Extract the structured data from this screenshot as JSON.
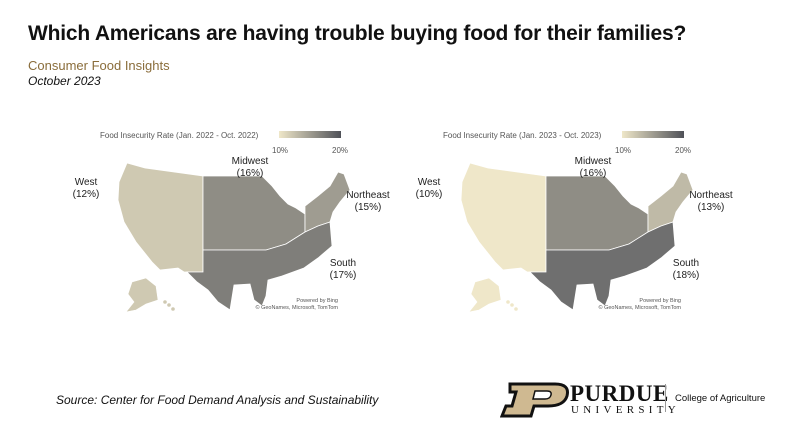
{
  "header": {
    "title": "Which Americans are having trouble buying food for their families?",
    "subtitle": "Consumer Food Insights",
    "date": "October 2023"
  },
  "maps": [
    {
      "legend_title": "Food Insecurity Rate (Jan. 2022 - Oct. 2022)",
      "legend_min": "10%",
      "legend_max": "20%",
      "scale_min": 10,
      "scale_max": 20,
      "attribution_1": "Powered by Bing",
      "attribution_2": "© GeoNames, Microsoft, TomTom",
      "regions": {
        "west": {
          "name": "West",
          "label": "(12%)",
          "value": 12
        },
        "midwest": {
          "name": "Midwest",
          "label": "(16%)",
          "value": 16
        },
        "northeast": {
          "name": "Northeast",
          "label": "(15%)",
          "value": 15
        },
        "south": {
          "name": "South",
          "label": "(17%)",
          "value": 17
        }
      }
    },
    {
      "legend_title": "Food Insecurity Rate (Jan. 2023 - Oct. 2023)",
      "legend_min": "10%",
      "legend_max": "20%",
      "scale_min": 10,
      "scale_max": 20,
      "attribution_1": "Powered by Bing",
      "attribution_2": "© GeoNames, Microsoft, TomTom",
      "regions": {
        "west": {
          "name": "West",
          "label": "(10%)",
          "value": 10
        },
        "midwest": {
          "name": "Midwest",
          "label": "(16%)",
          "value": 16
        },
        "northeast": {
          "name": "Northeast",
          "label": "(13%)",
          "value": 13
        },
        "south": {
          "name": "South",
          "label": "(18%)",
          "value": 18
        }
      }
    }
  ],
  "colors": {
    "scale_low": "#efe7c9",
    "scale_high": "#4f5158",
    "brand_gold": "#cfb991",
    "subtitle": "#8a6d3b"
  },
  "footer": {
    "source": "Source:  Center for Food Demand Analysis and Sustainability",
    "logo_name": "PURDUE",
    "logo_sub": "UNIVERSITY",
    "college": "College of Agriculture"
  }
}
